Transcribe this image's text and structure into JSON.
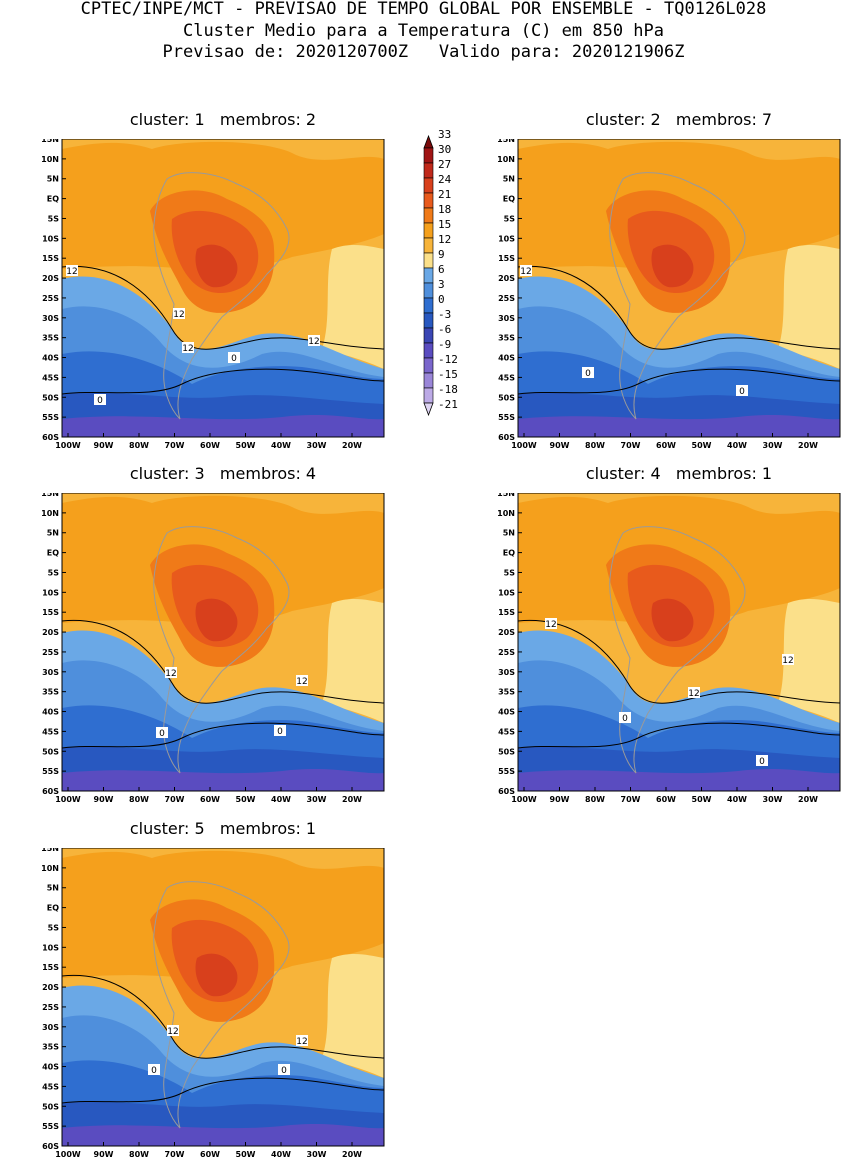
{
  "header": {
    "line1": "CPTEC/INPE/MCT - PREVISAO DE TEMPO GLOBAL POR ENSEMBLE - TQ0126L028",
    "line2": "Cluster Medio para a Temperatura (C) em 850 hPa",
    "line3": "Previsao de: 2020120700Z   Valido para: 2020121906Z"
  },
  "lat_labels": [
    "15N",
    "10N",
    "5N",
    "EQ",
    "5S",
    "10S",
    "15S",
    "20S",
    "25S",
    "30S",
    "35S",
    "40S",
    "45S",
    "50S",
    "55S",
    "60S"
  ],
  "lon_labels": [
    "100W",
    "90W",
    "80W",
    "70W",
    "60W",
    "50W",
    "40W",
    "30W",
    "20W"
  ],
  "colorbar": {
    "levels": [
      "33",
      "30",
      "27",
      "24",
      "21",
      "18",
      "15",
      "12",
      "9",
      "6",
      "3",
      "0",
      "-3",
      "-6",
      "-9",
      "-12",
      "-15",
      "-18",
      "-21"
    ],
    "colors": [
      "#7a0a0a",
      "#a01414",
      "#c0281a",
      "#d8401c",
      "#e85a1c",
      "#f07a18",
      "#f5a01c",
      "#f7b43a",
      "#fbe08a",
      "#6aa8e6",
      "#4f8fdc",
      "#2f6ed0",
      "#2858c0",
      "#3a46b4",
      "#5a4cc0",
      "#7a66cc",
      "#9a86d8",
      "#bcaae6",
      "#ded4f2"
    ]
  },
  "panels": [
    {
      "title": "cluster: 1   membros: 2",
      "contour_labels": [
        {
          "text": "12"
        },
        {
          "text": "12"
        },
        {
          "text": "12"
        },
        {
          "text": "12"
        },
        {
          "text": "0"
        },
        {
          "text": "0"
        }
      ]
    },
    {
      "title": "cluster: 2   membros: 7",
      "contour_labels": [
        {
          "text": "12"
        },
        {
          "text": "0"
        },
        {
          "text": "0"
        }
      ]
    },
    {
      "title": "cluster: 3   membros: 4",
      "contour_labels": [
        {
          "text": "12"
        },
        {
          "text": "12"
        },
        {
          "text": "0"
        },
        {
          "text": "0"
        }
      ]
    },
    {
      "title": "cluster: 4   membros: 1",
      "contour_labels": [
        {
          "text": "12"
        },
        {
          "text": "12"
        },
        {
          "text": "12"
        },
        {
          "text": "0"
        },
        {
          "text": "0"
        }
      ]
    },
    {
      "title": "cluster: 5   membros: 1",
      "contour_labels": [
        {
          "text": "12"
        },
        {
          "text": "12"
        },
        {
          "text": "0"
        },
        {
          "text": "0"
        }
      ]
    }
  ]
}
